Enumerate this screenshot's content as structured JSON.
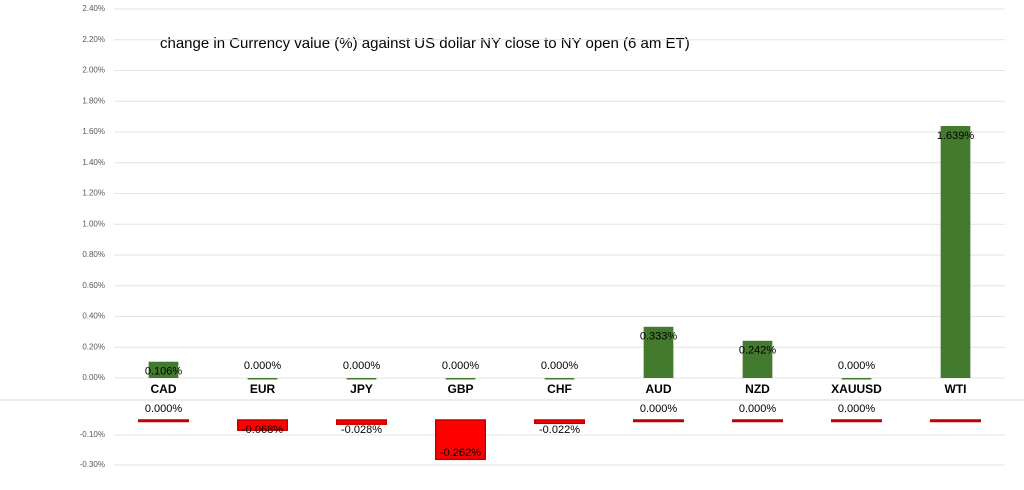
{
  "chart_data": [
    {
      "type": "bar",
      "title": "change in Currency value (%)  against US dollar  NY  close to  NY open (6 am ET)",
      "categories": [
        "CAD",
        "EUR",
        "JPY",
        "GBP",
        "CHF",
        "AUD",
        "NZD",
        "XAUUSD",
        "WTI"
      ],
      "values": [
        0.106,
        0,
        0,
        0,
        0,
        0.333,
        0.242,
        0,
        1.639
      ],
      "value_labels": [
        "0.106%",
        "0.000%",
        "0.000%",
        "0.000%",
        "0.000%",
        "0.333%",
        "0.242%",
        "0.000%",
        "1.639%"
      ],
      "color": "#437a2e",
      "ylim": [
        0,
        2.4
      ],
      "yticks": [
        {
          "value": 0,
          "label": "0.00%"
        },
        {
          "value": 0.2,
          "label": "0.20%"
        },
        {
          "value": 0.4,
          "label": "0.40%"
        },
        {
          "value": 0.6,
          "label": "0.60%"
        },
        {
          "value": 0.8,
          "label": "0.80%"
        },
        {
          "value": 1.0,
          "label": "1.00%"
        },
        {
          "value": 1.2,
          "label": "1.20%"
        },
        {
          "value": 1.4,
          "label": "1.40%"
        },
        {
          "value": 1.6,
          "label": "1.60%"
        },
        {
          "value": 1.8,
          "label": "1.80%"
        },
        {
          "value": 2.0,
          "label": "2.00%"
        },
        {
          "value": 2.2,
          "label": "2.20%"
        },
        {
          "value": 2.4,
          "label": "2.40%"
        }
      ],
      "grid": true
    },
    {
      "type": "bar",
      "values": [
        0,
        -0.068,
        -0.028,
        -0.262,
        -0.022,
        0,
        0,
        0,
        0
      ],
      "value_labels": [
        "0.000%",
        "-0.068%",
        "-0.028%",
        "-0.262%",
        "-0.022%",
        "0.000%",
        "0.000%",
        "0.000%",
        null
      ],
      "color": "#ff0000",
      "ylim": [
        -0.4,
        0
      ],
      "yticks": [
        {
          "value": -0.1,
          "label": "-0.10%"
        },
        {
          "value": -0.3,
          "label": "-0.30%"
        }
      ],
      "grid": true
    }
  ]
}
